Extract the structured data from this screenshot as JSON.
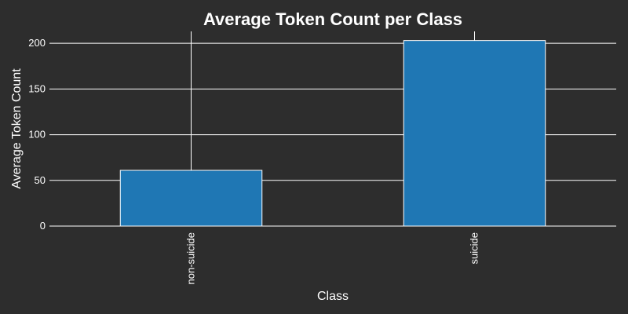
{
  "chart_data": {
    "type": "bar",
    "title": "Average Token Count per Class",
    "xlabel": "Class",
    "ylabel": "Average Token Count",
    "categories": [
      "non-suicide",
      "suicide"
    ],
    "values": [
      61,
      203
    ],
    "ylim": [
      0,
      213
    ],
    "yticks": [
      0,
      50,
      100,
      150,
      200
    ],
    "grid": true,
    "bar_color": "#1f77b4",
    "background_color": "#2d2d2d",
    "text_color": "#ffffff"
  }
}
